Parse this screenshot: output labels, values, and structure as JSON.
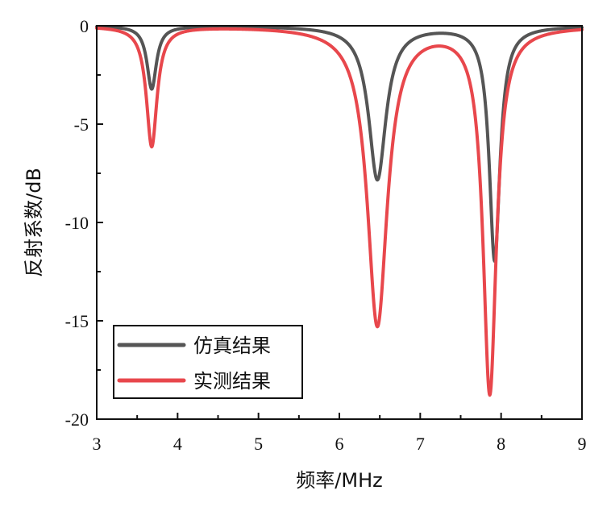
{
  "chart_data": {
    "type": "line",
    "xlabel": "频率/MHz",
    "ylabel": "反射系数/dB",
    "xlim": [
      3,
      9
    ],
    "ylim": [
      -20,
      0
    ],
    "xticks": [
      "3",
      "4",
      "5",
      "6",
      "7",
      "8",
      "9"
    ],
    "yticks": [
      "0",
      "-5",
      "-10",
      "-15",
      "-20"
    ],
    "grid": false,
    "legend_position": "bottom-left",
    "series": [
      {
        "name": "仿真结果",
        "color": "#555555",
        "resonances": [
          {
            "f0": 3.68,
            "min_db": -3.2,
            "width": 0.07
          },
          {
            "f0": 6.47,
            "min_db": -7.8,
            "width": 0.13
          },
          {
            "f0": 7.92,
            "min_db": -11.9,
            "width": 0.08
          }
        ]
      },
      {
        "name": "实测结果",
        "color": "#e8474c",
        "resonances": [
          {
            "f0": 3.68,
            "min_db": -6.1,
            "width": 0.08
          },
          {
            "f0": 6.47,
            "min_db": -15.2,
            "width": 0.15
          },
          {
            "f0": 7.86,
            "min_db": -18.6,
            "width": 0.1
          }
        ]
      }
    ]
  }
}
